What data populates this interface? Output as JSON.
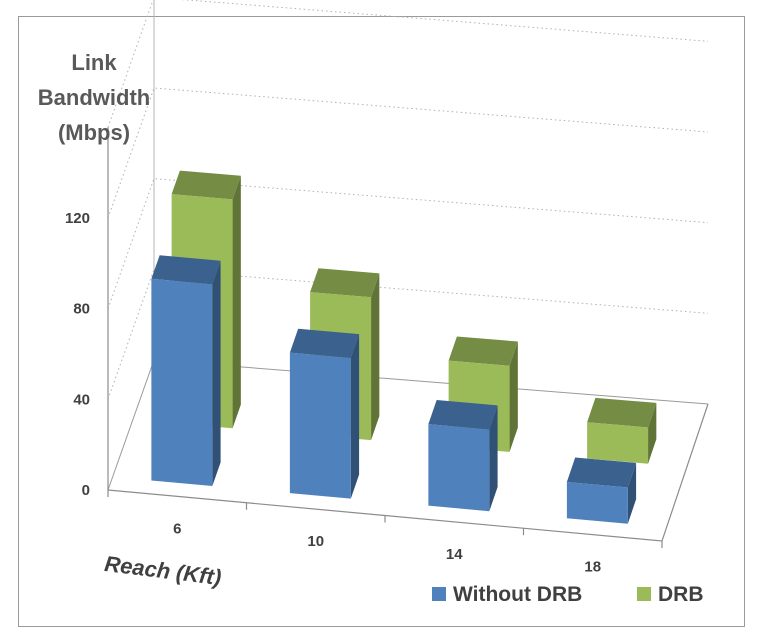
{
  "chart_data": {
    "type": "bar",
    "ylabel": [
      "Link",
      "Bandwidth",
      "(Mbps)"
    ],
    "xlabel": "Reach (Kft)",
    "categories": [
      "6",
      "10",
      "14",
      "18"
    ],
    "yticks": [
      "0",
      "40",
      "80",
      "120"
    ],
    "ylim": [
      0,
      160
    ],
    "grid": true,
    "legend_position": "bottom-right",
    "series": [
      {
        "name": "Without DRB",
        "values": [
          89,
          62,
          36,
          16
        ],
        "color": "#4f81bd"
      },
      {
        "name": "DRB",
        "values": [
          101,
          63,
          38,
          16
        ],
        "color": "#9bbb59"
      }
    ]
  }
}
